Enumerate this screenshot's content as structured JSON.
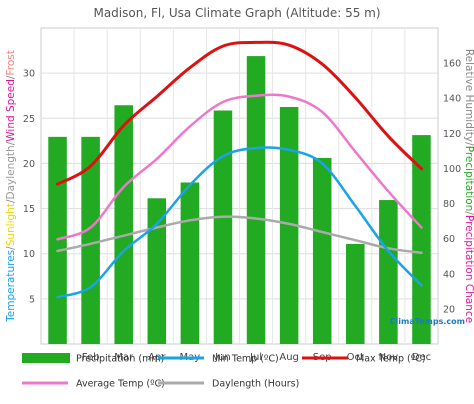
{
  "chart_data": {
    "type": "bar",
    "title": "Madison, Fl, Usa Climate Graph (Altitude: 55 m)",
    "categories": [
      "Jan",
      "Feb",
      "Mar",
      "Apr",
      "May",
      "Jun",
      "Jul",
      "Aug",
      "Sep",
      "Oct",
      "Nov",
      "Dec"
    ],
    "left_axis": {
      "label_parts": [
        {
          "text": "Temperatures",
          "color": "#1aa3e8"
        },
        {
          "text": "/",
          "color": "#888888"
        },
        {
          "text": "Sunlight",
          "color": "#e8d800"
        },
        {
          "text": "/",
          "color": "#888888"
        },
        {
          "text": "Daylength",
          "color": "#999999"
        },
        {
          "text": "/",
          "color": "#888888"
        },
        {
          "text": "Wind Speed",
          "color": "#e0169a"
        },
        {
          "text": "/",
          "color": "#888888"
        },
        {
          "text": "Frost",
          "color": "#f08080"
        }
      ],
      "ticks": [
        5,
        10,
        15,
        20,
        25,
        30
      ],
      "ylim": [
        0,
        35
      ]
    },
    "right_axis": {
      "label_parts": [
        {
          "text": "Relative Humidity",
          "color": "#888888"
        },
        {
          "text": "/",
          "color": "#888888"
        },
        {
          "text": "Precipitation",
          "color": "#22aa22"
        },
        {
          "text": "/",
          "color": "#888888"
        },
        {
          "text": "Precipitation Chance",
          "color": "#e0169a"
        }
      ],
      "ticks": [
        20,
        40,
        60,
        80,
        100,
        120,
        140,
        160
      ],
      "ylim": [
        0,
        180
      ]
    },
    "series": [
      {
        "name": "Precipitation (mm)",
        "kind": "bar",
        "axis": "right",
        "color": "#22aa22",
        "values": [
          118,
          118,
          136,
          83,
          92,
          133,
          164,
          135,
          106,
          57,
          82,
          119
        ]
      },
      {
        "name": "Min Temp (ºC)",
        "kind": "line",
        "axis": "left",
        "color": "#1aa3e8",
        "values": [
          5.2,
          6.3,
          10.3,
          13.3,
          17.6,
          20.8,
          21.7,
          21.5,
          20.0,
          15.3,
          10.3,
          6.5
        ]
      },
      {
        "name": "Max Temp (ºC)",
        "kind": "line",
        "axis": "left",
        "color": "#dd1111",
        "values": [
          17.7,
          19.7,
          24.2,
          27.4,
          30.6,
          33.0,
          33.4,
          33.1,
          31.0,
          27.3,
          23.0,
          19.4
        ]
      },
      {
        "name": "Average Temp (ºC)",
        "kind": "line",
        "axis": "left",
        "color": "#ee77cc",
        "values": [
          11.6,
          12.9,
          17.4,
          20.5,
          24.1,
          26.8,
          27.5,
          27.4,
          25.7,
          21.3,
          16.9,
          12.9
        ]
      },
      {
        "name": "Daylength (Hours)",
        "kind": "line",
        "axis": "left",
        "color": "#aaaaaa",
        "values": [
          10.3,
          11.1,
          12.0,
          12.9,
          13.7,
          14.1,
          13.9,
          13.3,
          12.4,
          11.5,
          10.6,
          10.1
        ]
      }
    ],
    "grid": true,
    "legend_position": "bottom",
    "watermark": "ClimaTemps.com"
  }
}
